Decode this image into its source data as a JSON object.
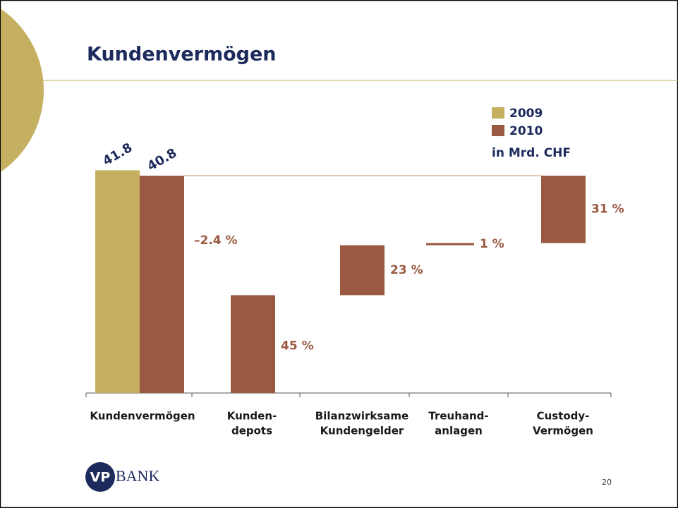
{
  "title": "Kundenvermögen",
  "page_number": "20",
  "logo": {
    "mark": "VP",
    "text": "BANK"
  },
  "chart_data": {
    "type": "waterfall",
    "unit_label": "in Mrd. CHF",
    "categories": [
      [
        "Kundenvermögen"
      ],
      [
        "Kunden-",
        "depots"
      ],
      [
        "Bilanzwirksame",
        "Kundengelder"
      ],
      [
        "Treuhand-",
        "anlagen"
      ],
      [
        "Custody-",
        "Vermögen"
      ]
    ],
    "totals": [
      {
        "name": "2009",
        "color": "#c4b060",
        "value": 41.8
      },
      {
        "name": "2010",
        "color": "#9a5a42",
        "value": 40.8
      }
    ],
    "change": -2.4,
    "change_label": "–2.4 %",
    "breakdown": {
      "color": "#9a5a42",
      "values": [
        45,
        23,
        1,
        31
      ],
      "value_labels": [
        "45 %",
        "23 %",
        "1 %",
        "31 %"
      ]
    }
  }
}
